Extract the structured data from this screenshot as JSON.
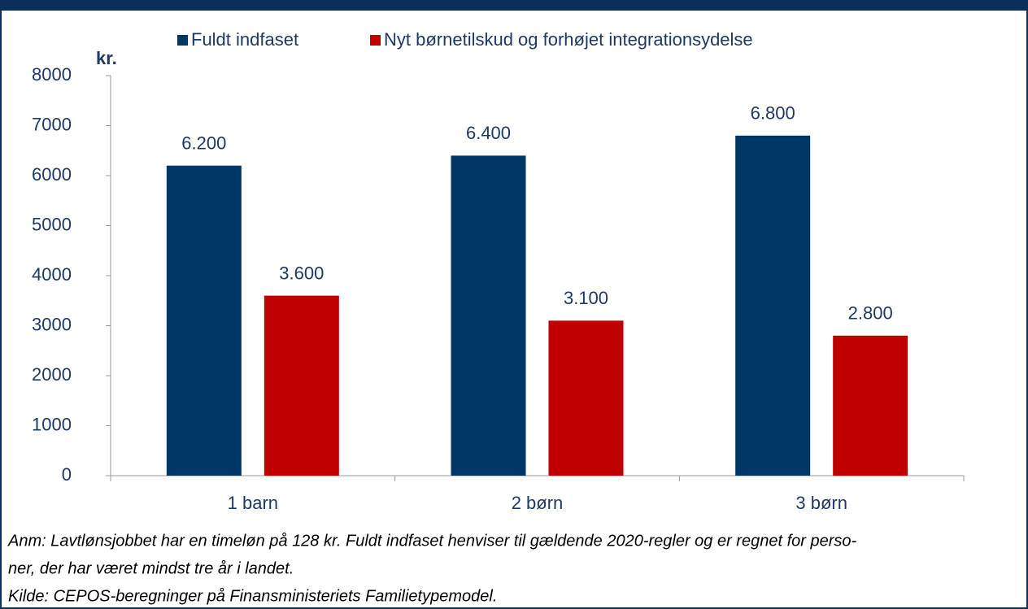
{
  "chart_data": {
    "type": "bar",
    "y_label": "kr.",
    "categories": [
      "1 barn",
      "2 børn",
      "3 børn"
    ],
    "series": [
      {
        "name": "Fuldt indfaset",
        "color": "#003764",
        "values": [
          6200,
          6400,
          6800
        ],
        "value_labels": [
          "6.200",
          "6.400",
          "6.800"
        ]
      },
      {
        "name": "Nyt børnetilskud og forhøjet integrationsydelse",
        "color": "#c00000",
        "values": [
          3600,
          3100,
          2800
        ],
        "value_labels": [
          "3.600",
          "3.100",
          "2.800"
        ]
      }
    ],
    "ylim": [
      0,
      8000
    ],
    "yticks": [
      0,
      1000,
      2000,
      3000,
      4000,
      5000,
      6000,
      7000,
      8000
    ],
    "legend": "top",
    "notes": [
      "Anm: Lavtlønsjobbet har en timeløn på 128 kr. Fuldt indfaset henviser til gældende 2020-regler og er regnet for perso-",
      "ner, der har været mindst tre år i landet.",
      "Kilde: CEPOS-beregninger på Finansministeriets Familietypemodel."
    ]
  }
}
